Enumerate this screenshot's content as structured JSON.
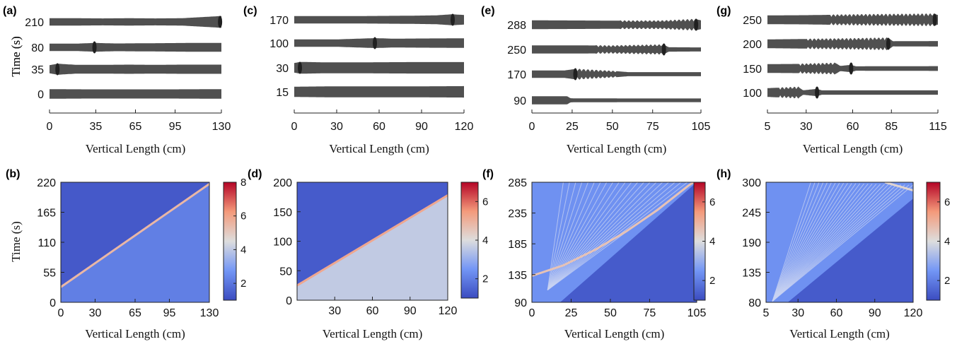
{
  "chart_data": [
    {
      "panel": "(a)",
      "type": "other",
      "xlabel": "Vertical Length (cm)",
      "ylabel": "Time (s)",
      "xlim": [
        0,
        130
      ],
      "xticks": [
        0,
        35,
        65,
        95,
        130
      ],
      "rows": [
        {
          "time_label": "210",
          "bulge_x": 129,
          "thickness_profile": [
            [
              0,
              1
            ],
            [
              20,
              1
            ],
            [
              40,
              0.95
            ],
            [
              60,
              1
            ],
            [
              80,
              0.95
            ],
            [
              100,
              1
            ],
            [
              110,
              1.2
            ],
            [
              120,
              1.4
            ],
            [
              130,
              1.6
            ]
          ]
        },
        {
          "time_label": "80",
          "bulge_x": 34,
          "thickness_profile": [
            [
              0,
              1
            ],
            [
              20,
              1
            ],
            [
              34,
              1.2
            ],
            [
              50,
              1.05
            ],
            [
              70,
              1.1
            ],
            [
              90,
              1.15
            ],
            [
              110,
              1.2
            ],
            [
              130,
              1.2
            ]
          ]
        },
        {
          "time_label": "35",
          "bulge_x": 6,
          "thickness_profile": [
            [
              0,
              1.1
            ],
            [
              6,
              1.5
            ],
            [
              20,
              1.2
            ],
            [
              40,
              1.2
            ],
            [
              60,
              1.25
            ],
            [
              80,
              1.2
            ],
            [
              100,
              1.25
            ],
            [
              130,
              1.25
            ]
          ]
        },
        {
          "time_label": "0",
          "bulge_x": null,
          "thickness_profile": [
            [
              0,
              1.3
            ],
            [
              30,
              1.25
            ],
            [
              60,
              1.25
            ],
            [
              90,
              1.25
            ],
            [
              130,
              1.3
            ]
          ]
        }
      ]
    },
    {
      "panel": "(b)",
      "type": "heatmap",
      "xlabel": "Vertical Length (cm)",
      "ylabel": "Time (s)",
      "xlim": [
        0,
        130
      ],
      "ylim": [
        0,
        220
      ],
      "xticks": [
        0,
        30,
        65,
        95,
        130
      ],
      "yticks": [
        0,
        55,
        110,
        165,
        220
      ],
      "colorbar": {
        "range": [
          1,
          8
        ],
        "ticks": [
          2,
          4,
          6,
          8
        ]
      },
      "base_value": 2.0,
      "ridge": [
        [
          0,
          28
        ],
        [
          130,
          217
        ]
      ],
      "ridge_value": 5.5,
      "background_regions": [
        {
          "region": "above_ridge",
          "value": 1.3,
          "to_edge": "top"
        },
        {
          "region": "below_ridge",
          "value": 2.2,
          "to_edge": "bottom"
        }
      ]
    },
    {
      "panel": "(c)",
      "type": "other",
      "xlabel": "Vertical Length (cm)",
      "ylabel": "Time (s)",
      "xlim": [
        0,
        120
      ],
      "xticks": [
        0,
        30,
        60,
        90,
        120
      ],
      "rows": [
        {
          "time_label": "170",
          "bulge_x": 112,
          "thickness_profile": [
            [
              0,
              1
            ],
            [
              20,
              1
            ],
            [
              40,
              1
            ],
            [
              60,
              1.05
            ],
            [
              80,
              1.1
            ],
            [
              100,
              1.2
            ],
            [
              112,
              1.5
            ],
            [
              120,
              1.3
            ]
          ]
        },
        {
          "time_label": "100",
          "bulge_x": 57,
          "thickness_profile": [
            [
              0,
              1
            ],
            [
              30,
              1
            ],
            [
              57,
              1.35
            ],
            [
              70,
              1.2
            ],
            [
              90,
              1.25
            ],
            [
              120,
              1.3
            ]
          ]
        },
        {
          "time_label": "30",
          "bulge_x": 4,
          "thickness_profile": [
            [
              0,
              1.3
            ],
            [
              4,
              1.6
            ],
            [
              20,
              1.5
            ],
            [
              50,
              1.5
            ],
            [
              80,
              1.55
            ],
            [
              120,
              1.55
            ]
          ]
        },
        {
          "time_label": "15",
          "bulge_x": null,
          "thickness_profile": [
            [
              0,
              1.4
            ],
            [
              30,
              1.5
            ],
            [
              60,
              1.5
            ],
            [
              90,
              1.5
            ],
            [
              120,
              1.55
            ]
          ]
        }
      ]
    },
    {
      "panel": "(d)",
      "type": "heatmap",
      "xlabel": "Vertical Length (cm)",
      "ylabel": "",
      "xlim": [
        0,
        120
      ],
      "ylim": [
        0,
        200
      ],
      "xticks": [
        30,
        60,
        90,
        120
      ],
      "yticks": [
        0,
        50,
        100,
        150,
        200
      ],
      "colorbar": {
        "range": [
          1,
          7
        ],
        "ticks": [
          2,
          4,
          6
        ]
      },
      "base_value": 3.6,
      "ridge": [
        [
          0,
          25
        ],
        [
          120,
          178
        ]
      ],
      "ridge_value": 5.2,
      "background_regions": [
        {
          "region": "above_ridge",
          "value": 1.3,
          "to_edge": "top"
        },
        {
          "region": "below_ridge",
          "value": 3.6,
          "to_edge": "bottom"
        }
      ]
    },
    {
      "panel": "(e)",
      "type": "other",
      "xlabel": "Vertical Length (cm)",
      "ylabel": "",
      "xlim": [
        0,
        105
      ],
      "xticks": [
        0,
        25,
        50,
        75,
        105
      ],
      "rows": [
        {
          "time_label": "288",
          "bulge_x": 102,
          "osc_start": 55,
          "osc_end": 102,
          "thickness_profile": [
            [
              0,
              1.2
            ],
            [
              30,
              1.15
            ],
            [
              55,
              1.1
            ],
            [
              80,
              1.1
            ],
            [
              102,
              1.5
            ],
            [
              105,
              1.2
            ]
          ]
        },
        {
          "time_label": "250",
          "bulge_x": 82,
          "osc_start": 40,
          "osc_end": 82,
          "thickness_profile": [
            [
              0,
              1.1
            ],
            [
              30,
              1.1
            ],
            [
              50,
              1.05
            ],
            [
              82,
              1.3
            ],
            [
              85,
              0.6
            ],
            [
              105,
              0.55
            ]
          ]
        },
        {
          "time_label": "170",
          "bulge_x": 27,
          "osc_start": 27,
          "osc_end": 53,
          "thickness_profile": [
            [
              0,
              1
            ],
            [
              20,
              1
            ],
            [
              27,
              1.4
            ],
            [
              53,
              0.8
            ],
            [
              60,
              0.55
            ],
            [
              105,
              0.55
            ]
          ]
        },
        {
          "time_label": "90",
          "bulge_x": null,
          "thickness_profile": [
            [
              0,
              1.1
            ],
            [
              22,
              1.1
            ],
            [
              24,
              0.55
            ],
            [
              60,
              0.5
            ],
            [
              105,
              0.5
            ]
          ]
        }
      ]
    },
    {
      "panel": "(f)",
      "type": "heatmap",
      "xlabel": "Vertical Length (cm)",
      "ylabel": "",
      "xlim": [
        0,
        105
      ],
      "ylim": [
        90,
        285
      ],
      "xticks": [
        0,
        25,
        50,
        75,
        105
      ],
      "yticks": [
        90,
        135,
        185,
        235,
        285
      ],
      "colorbar": {
        "range": [
          1,
          7
        ],
        "ticks": [
          2,
          4,
          6
        ]
      },
      "base_value": 2.4,
      "ridge": [
        [
          0,
          133
        ],
        [
          20,
          150
        ],
        [
          40,
          175
        ],
        [
          60,
          205
        ],
        [
          80,
          240
        ],
        [
          100,
          280
        ],
        [
          103,
          285
        ]
      ],
      "ridge_value": 4.6,
      "background_regions": [
        {
          "region": "below_line",
          "line": [
            [
              18,
              90
            ],
            [
              105,
              285
            ]
          ],
          "value": 1.3
        }
      ],
      "wave_fan": {
        "origin": [
          10,
          110
        ],
        "count": 22,
        "angle_from": [
          20,
          285
        ],
        "angle_to": [
          103,
          285
        ]
      }
    },
    {
      "panel": "(g)",
      "type": "other",
      "xlabel": "Vertical Length (cm)",
      "ylabel": "",
      "xlim": [
        5,
        115
      ],
      "xticks": [
        5,
        30,
        60,
        85,
        115
      ],
      "rows": [
        {
          "time_label": "250",
          "bulge_x": 113,
          "osc_start": 45,
          "osc_end": 113,
          "thickness_profile": [
            [
              5,
              1.2
            ],
            [
              30,
              1.25
            ],
            [
              45,
              1.35
            ],
            [
              80,
              1.5
            ],
            [
              113,
              1.6
            ],
            [
              115,
              1.3
            ]
          ]
        },
        {
          "time_label": "200",
          "bulge_x": 83,
          "osc_start": 30,
          "osc_end": 83,
          "thickness_profile": [
            [
              5,
              1.2
            ],
            [
              30,
              1.3
            ],
            [
              60,
              1.45
            ],
            [
              83,
              1.6
            ],
            [
              86,
              0.7
            ],
            [
              115,
              0.75
            ]
          ]
        },
        {
          "time_label": "150",
          "bulge_x": 59,
          "osc_start": 25,
          "osc_end": 49,
          "thickness_profile": [
            [
              5,
              1.2
            ],
            [
              25,
              1.25
            ],
            [
              49,
              1.5
            ],
            [
              52,
              0.7
            ],
            [
              59,
              1.0
            ],
            [
              62,
              0.6
            ],
            [
              115,
              0.65
            ]
          ]
        },
        {
          "time_label": "100",
          "bulge_x": 37,
          "osc_start": 12,
          "osc_end": 25,
          "thickness_profile": [
            [
              5,
              1.2
            ],
            [
              25,
              1.5
            ],
            [
              28,
              0.6
            ],
            [
              37,
              1.0
            ],
            [
              40,
              0.6
            ],
            [
              115,
              0.6
            ]
          ]
        }
      ]
    },
    {
      "panel": "(h)",
      "type": "heatmap",
      "xlabel": "Vertical Length (cm)",
      "ylabel": "",
      "xlim": [
        5,
        120
      ],
      "ylim": [
        80,
        300
      ],
      "xticks": [
        5,
        30,
        60,
        90,
        120
      ],
      "yticks": [
        80,
        135,
        190,
        245,
        300
      ],
      "colorbar": {
        "range": [
          1,
          7
        ],
        "ticks": [
          2,
          4,
          6
        ]
      },
      "base_value": 2.4,
      "ridge": [
        [
          98,
          300
        ],
        [
          120,
          285
        ]
      ],
      "ridge_value": 4.2,
      "background_regions": [
        {
          "region": "below_line",
          "line": [
            [
              22,
              80
            ],
            [
              120,
              270
            ]
          ],
          "value": 1.3
        }
      ],
      "wave_fan": {
        "origin": [
          10,
          82
        ],
        "count": 26,
        "angle_from": [
          40,
          300
        ],
        "angle_to": [
          120,
          295
        ]
      }
    }
  ]
}
